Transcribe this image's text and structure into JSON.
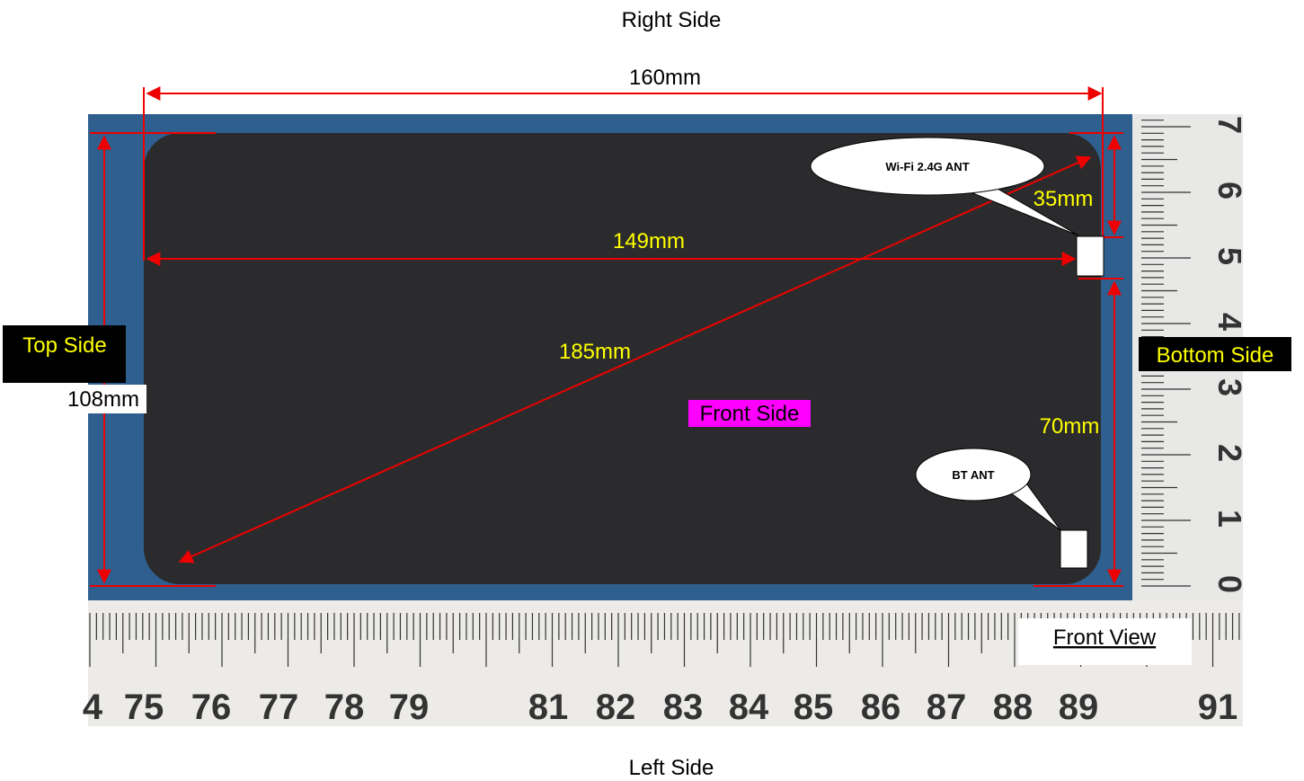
{
  "view_title": "Right Side",
  "bottom_title": "Left Side",
  "caption": "Front View",
  "front_label": "Front Side",
  "side_labels": {
    "top": "Top Side",
    "bottom": "Bottom Side"
  },
  "dimensions": {
    "width": "160mm",
    "length": "149mm",
    "diagonal": "185mm",
    "height": "108mm",
    "wifi_offset": "35mm",
    "bt_offset": "70mm"
  },
  "antennas": [
    "Wi-Fi 2.4G ANT",
    "BT ANT"
  ],
  "rulers": {
    "horizontal": [
      "4",
      "75",
      "76",
      "77",
      "78",
      "79",
      "81",
      "82",
      "83",
      "84",
      "85",
      "86",
      "87",
      "88",
      "89",
      "91"
    ],
    "vertical": [
      "0",
      "1",
      "2",
      "3",
      "4",
      "5",
      "6",
      "7"
    ]
  }
}
